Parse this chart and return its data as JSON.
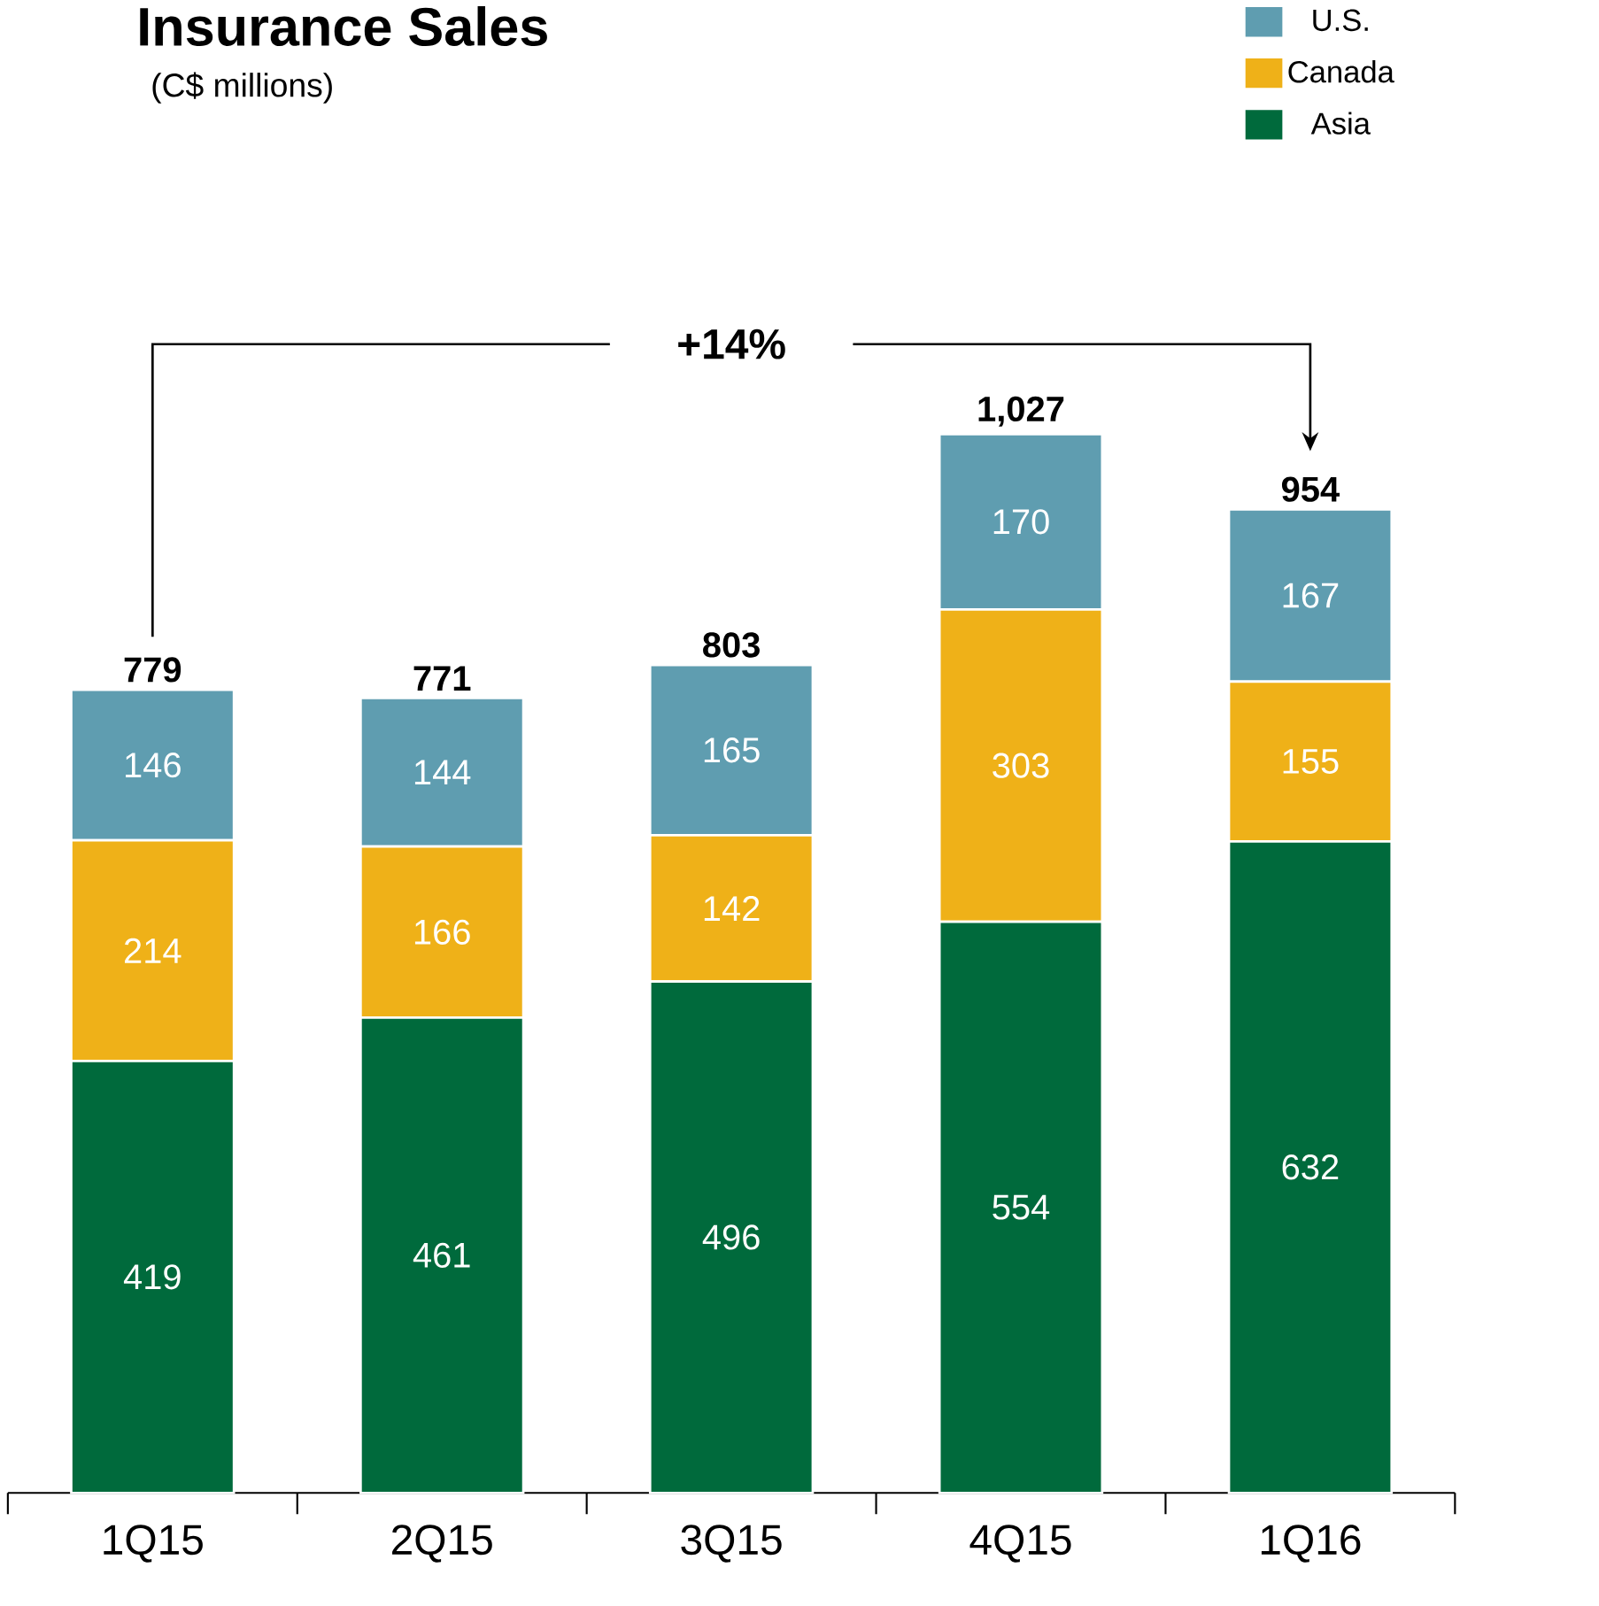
{
  "chart_data": {
    "type": "bar",
    "stacked": true,
    "title": "Insurance Sales",
    "subtitle": "(C$ millions)",
    "categories": [
      "1Q15",
      "2Q15",
      "3Q15",
      "4Q15",
      "1Q16"
    ],
    "series": [
      {
        "name": "Asia",
        "color": "#006a3c",
        "values": [
          419,
          461,
          496,
          554,
          632
        ]
      },
      {
        "name": "Canada",
        "color": "#efb118",
        "values": [
          214,
          166,
          142,
          303,
          155
        ]
      },
      {
        "name": "U.S.",
        "color": "#5f9db0",
        "values": [
          146,
          144,
          165,
          170,
          167
        ]
      }
    ],
    "data_labels": true,
    "totals": [
      "779",
      "771",
      "803",
      "1,027",
      "954"
    ],
    "annotations": [
      "+14%"
    ],
    "legend": "top right"
  }
}
